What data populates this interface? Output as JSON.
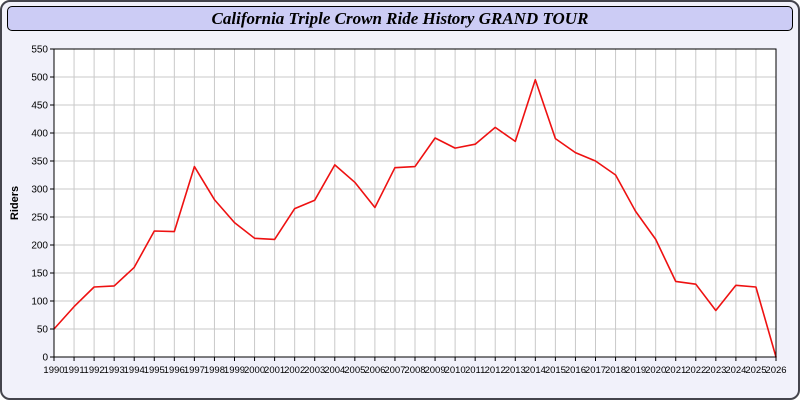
{
  "window": {
    "title": "California Triple Crown Ride History GRAND TOUR"
  },
  "colors": {
    "page_bg": "#f1f1fa",
    "title_bg": "#ccccf5",
    "title_border": "#000000",
    "outer_border": "#44444c",
    "plot_bg": "#ffffff",
    "grid": "#c9c9c9",
    "axis": "#000000",
    "line": "#ee1111"
  },
  "chart_data": {
    "type": "line",
    "title": "California Triple Crown Ride History GRAND TOUR",
    "xlabel": "",
    "ylabel": "Riders",
    "ylim": [
      0,
      550
    ],
    "ytick_step": 50,
    "grid": true,
    "legend": false,
    "x": [
      1990,
      1991,
      1992,
      1993,
      1994,
      1995,
      1996,
      1997,
      1998,
      1999,
      2000,
      2001,
      2002,
      2003,
      2004,
      2005,
      2006,
      2007,
      2008,
      2009,
      2010,
      2011,
      2012,
      2013,
      2014,
      2015,
      2016,
      2017,
      2018,
      2019,
      2020,
      2021,
      2022,
      2023,
      2024,
      2025,
      2026
    ],
    "series": [
      {
        "name": "Riders",
        "color": "#ee1111",
        "values": [
          50,
          90,
          125,
          127,
          160,
          225,
          224,
          340,
          281,
          240,
          212,
          210,
          265,
          280,
          343,
          312,
          267,
          338,
          340,
          391,
          373,
          380,
          410,
          385,
          495,
          390,
          365,
          350,
          325,
          260,
          210,
          135,
          130,
          83,
          128,
          125,
          0
        ]
      }
    ]
  }
}
